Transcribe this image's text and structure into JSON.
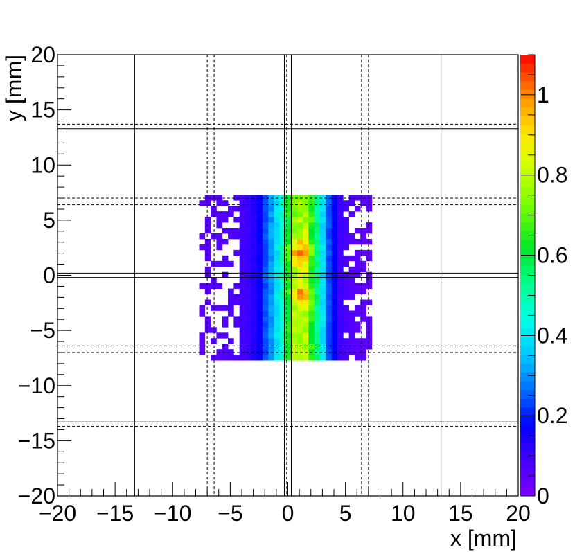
{
  "chart_data": {
    "type": "heatmap",
    "title": "",
    "xlabel": "x [mm]",
    "ylabel": "y [mm]",
    "xlim": [
      -20,
      20
    ],
    "ylim": [
      -20,
      20
    ],
    "x_ticks": [
      -20,
      -15,
      -10,
      -5,
      0,
      5,
      10,
      15,
      20
    ],
    "y_ticks": [
      -20,
      -15,
      -10,
      -5,
      0,
      5,
      10,
      15,
      20
    ],
    "x_tick_labels": [
      "−20",
      "−15",
      "−10",
      "−5",
      "0",
      "5",
      "10",
      "15",
      "20"
    ],
    "y_tick_labels": [
      "−20",
      "−15",
      "−10",
      "−5",
      "0",
      "5",
      "10",
      "15",
      "20"
    ],
    "colorbar": {
      "zlim": [
        0,
        1.1
      ],
      "ticks": [
        0,
        0.2,
        0.4,
        0.6,
        0.8,
        1
      ],
      "tick_labels": [
        "0",
        "0.2",
        "0.4",
        "0.6",
        "0.8",
        "1"
      ]
    },
    "grid": false,
    "populated_region": {
      "x": [
        -7.7,
        7.3
      ],
      "y": [
        -7.7,
        7.2
      ]
    },
    "bin_width_mm": 0.5,
    "x_profile": {
      "x": [
        -7.5,
        -6.5,
        -5.5,
        -4.5,
        -3.5,
        -2.5,
        -1.5,
        -0.5,
        0.5,
        1.5,
        2.5,
        3.5,
        4.5,
        5.5,
        6.5
      ],
      "z": [
        0.05,
        0.06,
        0.07,
        0.08,
        0.1,
        0.16,
        0.3,
        0.45,
        0.75,
        0.8,
        0.55,
        0.25,
        0.1,
        0.07,
        0.05
      ]
    },
    "peak_values": [
      {
        "x": 1.0,
        "y": 2.0,
        "z": 1.05
      },
      {
        "x": 1.0,
        "y": -1.8,
        "z": 1.0
      }
    ],
    "outline_lines": {
      "solid_vertical_x": [
        -13.3,
        -0.3,
        0.3,
        13.3
      ],
      "dashed_vertical_x": [
        -7.0,
        -6.4,
        -0.1,
        6.4,
        7.0
      ],
      "solid_horizontal_y": [
        -13.3,
        -0.2,
        0.2,
        13.3
      ],
      "dashed_horizontal_y": [
        -13.7,
        -7.0,
        -6.4,
        6.4,
        7.0,
        13.7
      ]
    }
  }
}
